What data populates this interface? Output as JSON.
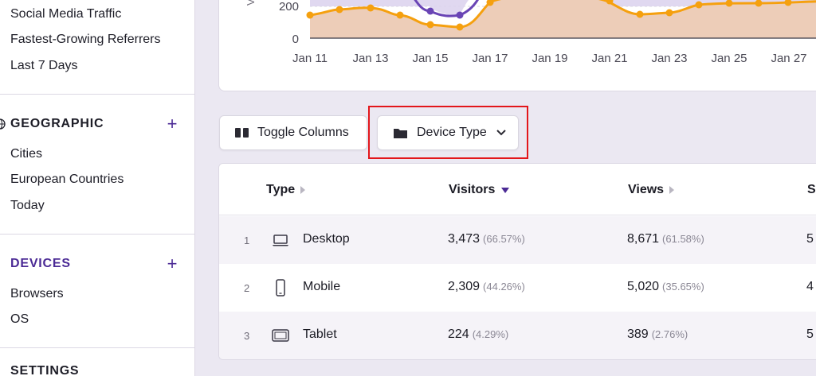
{
  "sidebar": {
    "referrers_items": [
      "Social Media Traffic",
      "Fastest-Growing Referrers",
      "Last 7 Days"
    ],
    "geographic": {
      "title": "GEOGRAPHIC",
      "items": [
        "Cities",
        "European Countries",
        "Today"
      ]
    },
    "devices": {
      "title": "DEVICES",
      "items": [
        "Browsers",
        "OS"
      ]
    },
    "settings": {
      "title": "SETTINGS"
    },
    "plus_symbol": "+"
  },
  "chart": {
    "ylabel": "Vi",
    "y_ticks": [
      "200",
      "0"
    ],
    "x_ticks": [
      "Jan 11",
      "Jan 13",
      "Jan 15",
      "Jan 17",
      "Jan 19",
      "Jan 21",
      "Jan 23",
      "Jan 25",
      "Jan 27"
    ],
    "colors": {
      "orange": "#f5a00f",
      "purple": "#6a45b5",
      "fill": "#eed0c0"
    }
  },
  "toolbar": {
    "toggle_columns_label": "Toggle Columns",
    "device_type_label": "Device Type"
  },
  "table": {
    "headers": {
      "type": "Type",
      "visitors": "Visitors",
      "views": "Views",
      "next": "S"
    },
    "rows": [
      {
        "rank": "1",
        "type": "Desktop",
        "icon": "laptop-icon",
        "visitors": "3,473",
        "visitors_pct": "(66.57%)",
        "views": "8,671",
        "views_pct": "(61.58%)",
        "next": "5"
      },
      {
        "rank": "2",
        "type": "Mobile",
        "icon": "mobile-icon",
        "visitors": "2,309",
        "visitors_pct": "(44.26%)",
        "views": "5,020",
        "views_pct": "(35.65%)",
        "next": "4"
      },
      {
        "rank": "3",
        "type": "Tablet",
        "icon": "tablet-icon",
        "visitors": "224",
        "visitors_pct": "(4.29%)",
        "views": "389",
        "views_pct": "(2.76%)",
        "next": "5"
      }
    ]
  }
}
